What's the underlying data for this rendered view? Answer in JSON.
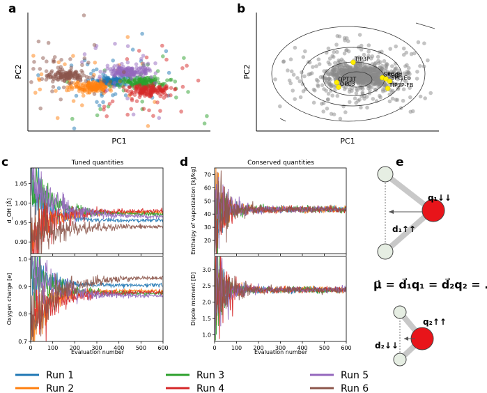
{
  "chart_data": [
    {
      "panel": "a",
      "type": "scatter",
      "xlabel": "PC1",
      "ylabel": "PC2",
      "series_names": [
        "Run 1",
        "Run 2",
        "Run 3",
        "Run 4",
        "Run 5",
        "Run 6"
      ],
      "xlim": [
        -5,
        5
      ],
      "ylim": [
        -4,
        6
      ]
    },
    {
      "panel": "b",
      "type": "scatter",
      "xlabel": "PC1",
      "ylabel": "PC2",
      "xlim": [
        -5,
        5
      ],
      "ylim": [
        -4,
        6
      ],
      "contour_levels": 4,
      "water_models": [
        {
          "name": "TIP3P",
          "x": 0.3,
          "y": 1.8
        },
        {
          "name": "SPC/E",
          "x": 1.9,
          "y": 0.5
        },
        {
          "name": "SPCE",
          "x": 2.1,
          "y": 0.4
        },
        {
          "name": "SPC/Eb",
          "x": 2.3,
          "y": 0.2
        },
        {
          "name": "OPT3T",
          "x": -0.6,
          "y": 0.1
        },
        {
          "name": "OPC3",
          "x": -0.5,
          "y": -0.3
        },
        {
          "name": "TIP3P-FB",
          "x": 2.2,
          "y": -0.4
        }
      ]
    },
    {
      "panel": "c",
      "type": "line",
      "title": "Tuned quantities",
      "xlabel": "Evaluation number",
      "xlim": [
        0,
        600
      ],
      "xticks": [
        0,
        100,
        200,
        300,
        400,
        500,
        600
      ],
      "subplots": [
        {
          "ylabel": "d_OH [Å]",
          "ylim": [
            0.87,
            1.09
          ],
          "yticks": [
            "0.90",
            "0.95",
            "1.00",
            "1.05"
          ],
          "finals": [
            0.955,
            0.975,
            0.972,
            0.98,
            0.965,
            0.94
          ]
        },
        {
          "ylabel": "Oxygen charge [e]",
          "ylim": [
            0.7,
            1.01
          ],
          "yticks": [
            "0.7",
            "0.8",
            "0.9",
            "1.0"
          ],
          "finals": [
            0.905,
            0.885,
            0.875,
            0.88,
            0.865,
            0.935
          ]
        }
      ]
    },
    {
      "panel": "d",
      "type": "line",
      "title": "Conserved quantities",
      "xlabel": "Evaluation number",
      "xlim": [
        0,
        600
      ],
      "xticks": [
        0,
        100,
        200,
        300,
        400,
        500,
        600
      ],
      "subplots": [
        {
          "ylabel": "Enthalpy of vaporization [kJ/kg]",
          "ylim": [
            10,
            75
          ],
          "yticks": [
            "20",
            "30",
            "40",
            "50",
            "60",
            "70"
          ],
          "converge": 43.5
        },
        {
          "ylabel": "Dipole moment [D]",
          "ylim": [
            0.8,
            3.4
          ],
          "yticks": [
            "1.0",
            "1.5",
            "2.0",
            "2.5",
            "3.0"
          ],
          "converge": 2.38
        }
      ]
    }
  ],
  "panels": {
    "a": "a",
    "b": "b",
    "c": "c",
    "d": "d",
    "e": "e"
  },
  "legend": [
    {
      "label": "Run 1",
      "color": "#1f77b4"
    },
    {
      "label": "Run 2",
      "color": "#ff7f0e"
    },
    {
      "label": "Run 3",
      "color": "#2ca02c"
    },
    {
      "label": "Run 4",
      "color": "#d62728"
    },
    {
      "label": "Run 5",
      "color": "#9467bd"
    },
    {
      "label": "Run 6",
      "color": "#8c564b"
    }
  ],
  "diagram_e": {
    "q1_label": "q₁↓↓",
    "d1_label": "d₁↑↑",
    "equation": "μ⃗ = d⃗₁q₁ = d⃗₂q₂ = ...",
    "q2_label": "q₂↑↑",
    "d2_label": "d₂↓↓"
  }
}
